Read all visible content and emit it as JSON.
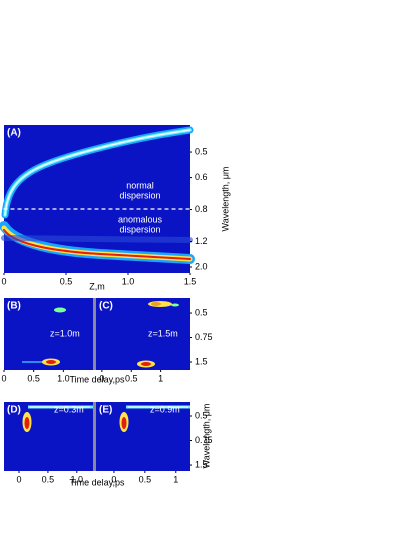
{
  "chart_data": [
    {
      "type": "heatmap",
      "label": "(A)",
      "annotations": [
        "normal",
        "dispersion",
        "anomalous",
        "dispersion"
      ],
      "x_label": "Z,m",
      "y_label": "Wavelength, μm",
      "yscale": "reciprocal",
      "xlim": [
        0,
        1.5
      ],
      "xticks": [
        0,
        0.5,
        {
          "value": 1,
          "label": "1.0"
        },
        1.5
      ],
      "ylim": [
        0.425,
        2.37
      ],
      "yticks": [
        0.5,
        0.6,
        0.8,
        1.2,
        {
          "value": 2,
          "label": "2.0"
        }
      ]
    },
    {
      "type": "heatmap",
      "label": "(B)",
      "annotations": [
        "z=1.0m"
      ],
      "x_label": "Time delay,ps",
      "yscale": "reciprocal",
      "xlim": [
        0,
        1.5
      ],
      "xticks": [
        0,
        0.5,
        {
          "value": 1,
          "label": "1.0"
        }
      ],
      "ylim": [
        0.415,
        2.23
      ]
    },
    {
      "type": "heatmap",
      "label": "(C)",
      "annotations": [
        "z=1.5m"
      ],
      "yscale": "reciprocal",
      "xlim": [
        -0.1,
        1.5
      ],
      "xticks": [
        0,
        0.5,
        1
      ],
      "ylim": [
        0.415,
        2.23
      ],
      "yticks": [
        0.5,
        0.75,
        1.5
      ]
    },
    {
      "type": "heatmap",
      "label": "(D)",
      "annotations": [
        "z=0.3m"
      ],
      "x_label": "Time delay,ps",
      "yscale": "reciprocal",
      "xlim": [
        -0.26,
        1.28
      ],
      "xticks": [
        0,
        0.5,
        {
          "value": 1,
          "label": "1.0"
        }
      ],
      "ylim": [
        0.42,
        1.98
      ]
    },
    {
      "type": "heatmap",
      "label": "(E)",
      "annotations": [
        "z=0.9m"
      ],
      "y_label": "Wavelength, μm",
      "yscale": "reciprocal",
      "xlim": [
        -0.29,
        1.23
      ],
      "xticks": [
        0,
        0.5,
        1
      ],
      "ylim": [
        0.42,
        1.98
      ],
      "yticks": [
        0.5,
        0.75,
        1.5
      ]
    }
  ]
}
